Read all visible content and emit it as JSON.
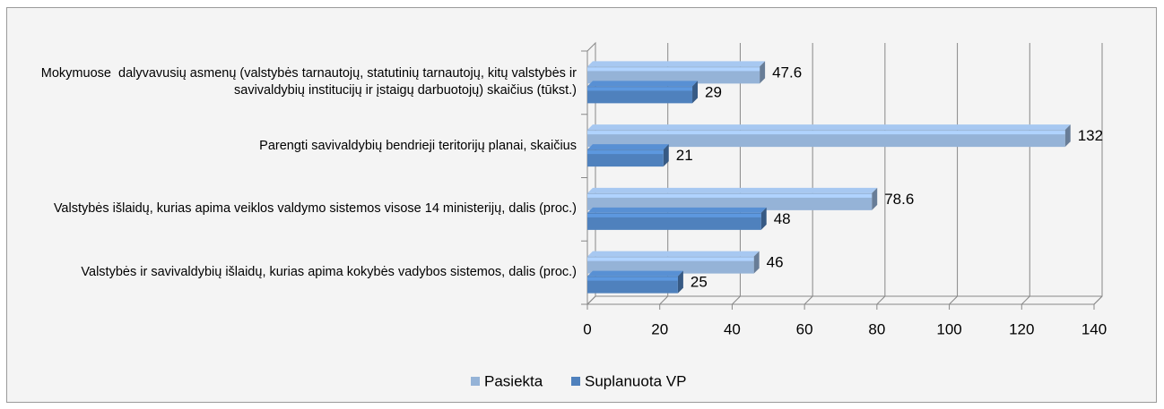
{
  "chart_data": {
    "type": "hbar3d",
    "categories": [
      "Mokymuose  dalyvavusių asmenų (valstybės tarnautojų, statutinių tarnautojų, kitų valstybės ir savivaldybių institucijų ir įstaigų darbuotojų) skaičius (tūkst.)",
      "Parengti savivaldybių bendrieji teritorijų planai, skaičius",
      "Valstybės išlaidų, kurias apima veiklos valdymo sistemos visose 14 ministerijų, dalis (proc.)",
      "Valstybės ir savivaldybių išlaidų, kurias apima kokybės vadybos sistemos, dalis (proc.)"
    ],
    "series": [
      {
        "name": "Pasiekta",
        "color": "#95b3d7",
        "values": [
          47.6,
          132,
          78.6,
          46
        ]
      },
      {
        "name": "Suplanuota VP",
        "color": "#4f81bd",
        "values": [
          29,
          21,
          48,
          25
        ]
      }
    ],
    "xlim": [
      0,
      140
    ],
    "xticks": [
      0,
      20,
      40,
      60,
      80,
      100,
      120,
      140
    ],
    "grid": true,
    "legend": "bottom"
  }
}
